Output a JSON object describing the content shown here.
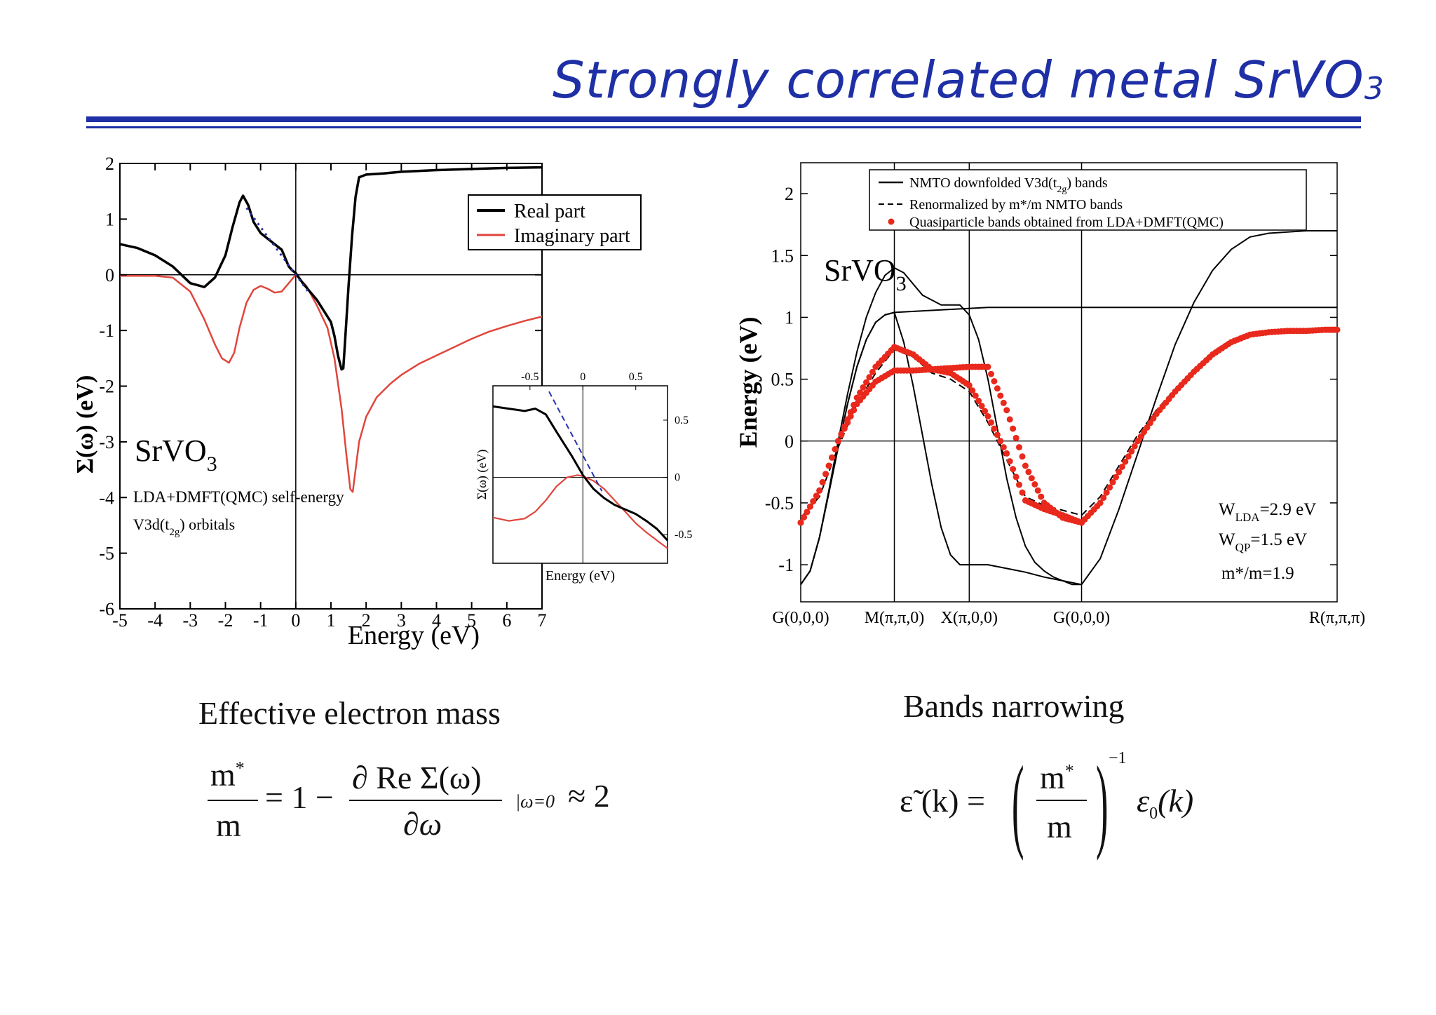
{
  "slide": {
    "title": "Strongly correlated metal SrVO",
    "title_subscript": "3",
    "accent_color": "#1f2fa6"
  },
  "chart_data": [
    {
      "type": "line",
      "title": "",
      "xlabel": "Energy (eV)",
      "ylabel": "Σ(ω) (eV)",
      "xlim": [
        -5,
        7
      ],
      "ylim": [
        -6,
        2
      ],
      "x_ticks": [
        "-5",
        "-4",
        "-3",
        "-2",
        "-1",
        "0",
        "1",
        "2",
        "3",
        "4",
        "5",
        "6",
        "7"
      ],
      "y_ticks": [
        "2",
        "1",
        "0",
        "-1",
        "-2",
        "-3",
        "-4",
        "-5",
        "-6"
      ],
      "legend_position": "top-right",
      "annotations": {
        "compound": "SrVO",
        "compound_sub": "3",
        "method": "LDA+DMFT(QMC) self-energy",
        "orbitals_prefix": "V3d(t",
        "orbitals_sub": "2g",
        "orbitals_suffix": ") orbitals"
      },
      "series": [
        {
          "name": "Real part",
          "color": "#000000",
          "x": [
            -5,
            -4.5,
            -4,
            -3.5,
            -3,
            -2.6,
            -2.3,
            -2,
            -1.8,
            -1.6,
            -1.5,
            -1.35,
            -1.2,
            -1,
            -0.8,
            -0.6,
            -0.4,
            -0.3,
            -0.2,
            -0.1,
            0,
            0.2,
            0.4,
            0.6,
            0.8,
            1,
            1.1,
            1.2,
            1.3,
            1.35,
            1.4,
            1.5,
            1.6,
            1.7,
            1.8,
            2,
            2.5,
            3,
            4,
            5,
            6,
            7
          ],
          "y": [
            0.55,
            0.48,
            0.35,
            0.15,
            -0.15,
            -0.22,
            -0.05,
            0.35,
            0.85,
            1.3,
            1.42,
            1.25,
            0.95,
            0.75,
            0.65,
            0.55,
            0.45,
            0.3,
            0.15,
            0.08,
            0.03,
            -0.15,
            -0.3,
            -0.45,
            -0.65,
            -0.85,
            -1.1,
            -1.45,
            -1.7,
            -1.68,
            -1.2,
            -0.2,
            0.7,
            1.4,
            1.75,
            1.8,
            1.82,
            1.85,
            1.88,
            1.9,
            1.92,
            1.93
          ]
        },
        {
          "name": "Imaginary part",
          "color": "#e0463c",
          "x": [
            -5,
            -4,
            -3.5,
            -3,
            -2.6,
            -2.3,
            -2.1,
            -1.9,
            -1.75,
            -1.6,
            -1.4,
            -1.2,
            -1,
            -0.8,
            -0.6,
            -0.4,
            -0.2,
            0,
            0.3,
            0.6,
            0.9,
            1.1,
            1.3,
            1.45,
            1.55,
            1.62,
            1.7,
            1.8,
            2,
            2.3,
            2.7,
            3,
            3.5,
            4,
            4.5,
            5,
            5.5,
            6,
            6.5,
            7
          ],
          "y": [
            -0.02,
            -0.02,
            -0.05,
            -0.3,
            -0.8,
            -1.25,
            -1.5,
            -1.58,
            -1.4,
            -0.95,
            -0.5,
            -0.27,
            -0.2,
            -0.25,
            -0.32,
            -0.3,
            -0.15,
            0,
            -0.2,
            -0.55,
            -0.95,
            -1.5,
            -2.4,
            -3.3,
            -3.85,
            -3.9,
            -3.5,
            -3.0,
            -2.55,
            -2.2,
            -1.95,
            -1.8,
            -1.6,
            -1.45,
            -1.3,
            -1.15,
            -1.02,
            -0.92,
            -0.83,
            -0.75
          ]
        },
        {
          "name": "",
          "color": "#2633b0",
          "style": "dotted",
          "x": [
            -1.4,
            0.35
          ],
          "y": [
            1.2,
            -0.3
          ]
        }
      ],
      "inset": {
        "xlabel": "Energy (eV)",
        "ylabel": "Σ(ω) (eV)",
        "xlim": [
          -0.85,
          0.8
        ],
        "ylim": [
          -0.75,
          0.8
        ],
        "x_ticks": [
          "-0.5",
          "0",
          "0.5"
        ],
        "y_ticks": [
          "0.5",
          "0",
          "-0.5"
        ],
        "series": [
          {
            "name": "Real part",
            "color": "#000000",
            "x": [
              -0.85,
              -0.7,
              -0.55,
              -0.45,
              -0.35,
              -0.25,
              -0.1,
              0,
              0.1,
              0.2,
              0.3,
              0.4,
              0.5,
              0.6,
              0.7,
              0.8
            ],
            "y": [
              0.62,
              0.6,
              0.58,
              0.6,
              0.55,
              0.4,
              0.18,
              0.02,
              -0.1,
              -0.18,
              -0.24,
              -0.28,
              -0.32,
              -0.38,
              -0.45,
              -0.55
            ]
          },
          {
            "name": "Imaginary part",
            "color": "#e0463c",
            "x": [
              -0.85,
              -0.7,
              -0.55,
              -0.45,
              -0.35,
              -0.25,
              -0.15,
              -0.05,
              0,
              0.1,
              0.2,
              0.3,
              0.4,
              0.5,
              0.6,
              0.7,
              0.8
            ],
            "y": [
              -0.35,
              -0.38,
              -0.36,
              -0.3,
              -0.2,
              -0.08,
              0.0,
              0.02,
              0.01,
              -0.03,
              -0.1,
              -0.2,
              -0.3,
              -0.4,
              -0.48,
              -0.55,
              -0.62
            ]
          },
          {
            "name": "",
            "color": "#2633b0",
            "style": "dashed",
            "x": [
              -0.32,
              0.18
            ],
            "y": [
              0.75,
              -0.12
            ]
          }
        ]
      }
    },
    {
      "type": "line",
      "title": "",
      "xlabel": "",
      "ylabel": "Energy (eV)",
      "ylim": [
        -1.3,
        2.25
      ],
      "x_ticks": [
        "G(0,0,0)",
        "M(π,π,0)",
        "X(π,0,0)",
        "G(0,0,0)",
        "R(π,π,π)"
      ],
      "y_ticks": [
        "2",
        "1.5",
        "1",
        "0.5",
        "0",
        "-0.5",
        "-1"
      ],
      "legend_position": "top-right",
      "annotations": {
        "compound": "SrVO",
        "compound_sub": "3",
        "w_lda_prefix": "W",
        "w_lda_sub": "LDA",
        "w_lda_value": "=2.9 eV",
        "w_qp_prefix": "W",
        "w_qp_sub": "QP",
        "w_qp_value": "=1.5 eV",
        "mass_ratio": "m*/m=1.9"
      },
      "legend": {
        "nmto_prefix": "NMTO downfolded  V3d(t",
        "nmto_sub": "2g",
        "nmto_suffix": ") bands",
        "renorm": "Renormalized by m*/m NMTO bands",
        "qp": "Quasiparticle bands obtained from LDA+DMFT(QMC)"
      },
      "series": [
        {
          "name": "NMTO downfolded V3d(t2g) bands",
          "color": "#000000",
          "x": [
            0,
            0.1,
            0.2,
            0.3,
            0.4,
            0.5,
            0.6,
            0.7,
            0.8,
            0.9,
            1,
            1.1,
            1.3,
            1.5,
            1.7,
            1.8,
            1.9,
            2,
            2.1,
            2.2,
            2.3,
            2.4,
            2.5,
            2.6,
            2.7,
            2.8,
            2.9,
            3,
            3.2,
            3.4,
            3.6,
            3.8,
            4,
            4.2,
            4.4,
            4.6,
            4.8,
            5,
            5.2,
            5.4,
            5.6,
            5.73
          ],
          "y": [
            -1.16,
            -1.05,
            -0.78,
            -0.4,
            0,
            0.38,
            0.72,
            1.0,
            1.2,
            1.34,
            1.4,
            1.36,
            1.18,
            1.1,
            1.1,
            1.02,
            0.82,
            0.5,
            0.1,
            -0.3,
            -0.62,
            -0.85,
            -0.98,
            -1.05,
            -1.1,
            -1.13,
            -1.16,
            -1.16,
            -0.95,
            -0.55,
            -0.1,
            0.35,
            0.78,
            1.12,
            1.38,
            1.55,
            1.65,
            1.68,
            1.69,
            1.7,
            1.7,
            1.7
          ]
        },
        {
          "name": "NMTO downfolded V3d(t2g) bands",
          "color": "#000000",
          "x": [
            0,
            0.1,
            0.2,
            0.3,
            0.4,
            0.5,
            0.6,
            0.7,
            0.8,
            0.9,
            1,
            1.5,
            2,
            2.5,
            3,
            3.2,
            3.4,
            3.6,
            3.8,
            4,
            4.2,
            4.4,
            4.6,
            4.8,
            5,
            5.2,
            5.4,
            5.6,
            5.73
          ],
          "y": [
            -1.16,
            -1.05,
            -0.78,
            -0.42,
            -0.05,
            0.3,
            0.6,
            0.82,
            0.96,
            1.02,
            1.04,
            1.06,
            1.08,
            1.08,
            1.08,
            1.08,
            1.08,
            1.08,
            1.08,
            1.08,
            1.08,
            1.08,
            1.08,
            1.08,
            1.08,
            1.08,
            1.08,
            1.08,
            1.08
          ]
        },
        {
          "name": "NMTO downfolded V3d(t2g) bands",
          "color": "#000000",
          "x": [
            0,
            0.1,
            0.2,
            0.3,
            0.4,
            0.5,
            0.6,
            0.7,
            0.8,
            0.9,
            1,
            1.1,
            1.2,
            1.3,
            1.4,
            1.5,
            1.6,
            1.7,
            1.8,
            1.9,
            2,
            2.2,
            2.4,
            2.6,
            2.8,
            3
          ],
          "y": [
            -1.16,
            -1.05,
            -0.78,
            -0.42,
            -0.05,
            0.3,
            0.6,
            0.82,
            0.96,
            1.02,
            1.04,
            0.8,
            0.45,
            0.05,
            -0.35,
            -0.7,
            -0.92,
            -1.0,
            -1.0,
            -1.0,
            -1.0,
            -1.03,
            -1.06,
            -1.1,
            -1.13,
            -1.16
          ]
        },
        {
          "name": "Renormalized by m*/m NMTO bands",
          "color": "#000000",
          "style": "dashed",
          "x": [
            0,
            0.2,
            0.4,
            0.6,
            0.8,
            1,
            1.2,
            1.4,
            1.6,
            1.8,
            2,
            2.2,
            2.4,
            2.6,
            2.8,
            3,
            3.2,
            3.4,
            3.6,
            3.8,
            4,
            4.2,
            4.4,
            4.6,
            4.8,
            5,
            5.2,
            5.4,
            5.6,
            5.73
          ],
          "y": [
            -0.62,
            -0.45,
            -0.05,
            0.3,
            0.55,
            0.74,
            0.68,
            0.55,
            0.5,
            0.4,
            0.15,
            -0.15,
            -0.45,
            -0.52,
            -0.56,
            -0.6,
            -0.45,
            -0.2,
            0.05,
            0.25,
            0.42,
            0.58,
            0.72,
            0.82,
            0.87,
            0.89,
            0.89,
            0.89,
            0.89,
            0.89
          ]
        },
        {
          "name": "Quasiparticle bands obtained from LDA+DMFT(QMC)",
          "color": "#e8291c",
          "style": "dots",
          "x": [
            0,
            0.2,
            0.4,
            0.6,
            0.8,
            1,
            1.2,
            1.4,
            1.6,
            1.8,
            2,
            2.2,
            2.4,
            2.6,
            2.8,
            3,
            3.2,
            3.4,
            3.6,
            3.8,
            4,
            4.2,
            4.4,
            4.6,
            4.8,
            5,
            5.2,
            5.4,
            5.6,
            5.73
          ],
          "y": [
            -0.66,
            -0.4,
            0.0,
            0.35,
            0.6,
            0.76,
            0.7,
            0.58,
            0.55,
            0.45,
            0.2,
            -0.1,
            -0.48,
            -0.55,
            -0.6,
            -0.66,
            -0.5,
            -0.25,
            0.0,
            0.22,
            0.4,
            0.56,
            0.7,
            0.8,
            0.86,
            0.88,
            0.89,
            0.89,
            0.9,
            0.9
          ]
        },
        {
          "name": "Quasiparticle bands obtained from LDA+DMFT(QMC)",
          "color": "#e8291c",
          "style": "dots",
          "x": [
            0,
            0.2,
            0.4,
            0.6,
            0.8,
            1,
            1.2,
            1.4,
            1.6,
            1.8,
            2,
            2.2,
            2.4,
            2.6,
            2.8,
            3
          ],
          "y": [
            -0.66,
            -0.4,
            0.0,
            0.3,
            0.48,
            0.57,
            0.57,
            0.58,
            0.59,
            0.6,
            0.6,
            0.25,
            -0.2,
            -0.5,
            -0.62,
            -0.66
          ]
        }
      ],
      "x_positions": [
        0,
        1,
        1.8,
        3,
        5.73
      ]
    }
  ],
  "captions": {
    "left": "Effective  electron  mass",
    "right": "Bands  narrowing"
  },
  "formula_left": {
    "num": "m",
    "num_sup": "*",
    "den": "m",
    "mid": "= 1 −",
    "frac_num": "∂ Re Σ(ω)",
    "frac_den": "∂ω",
    "sub": "|ω=0",
    "tail": "≈ 2"
  },
  "formula_right": {
    "lhs": "ε̃ (k) =",
    "num": "m",
    "num_sup": "*",
    "den": "m",
    "exp": "−1",
    "rhs_sym": "ε",
    "rhs_sub": "0",
    "rhs_arg": "(k)"
  }
}
